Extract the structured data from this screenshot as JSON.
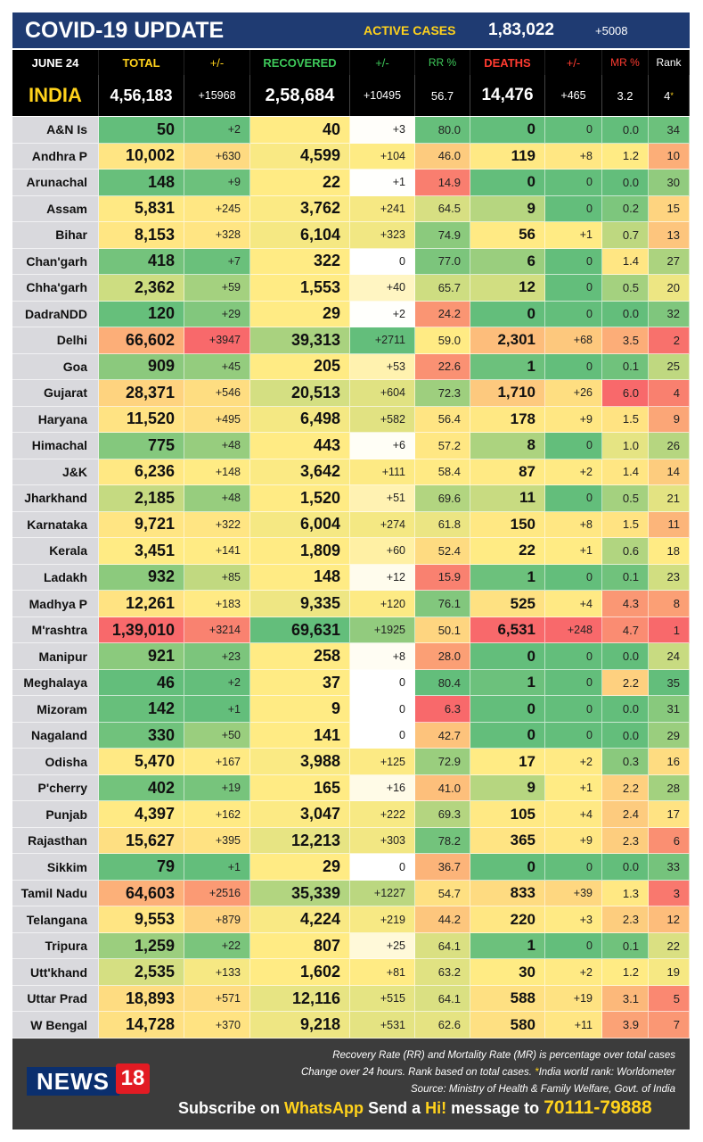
{
  "header": {
    "title": "COVID-19 UPDATE",
    "active_label": "ACTIVE CASES",
    "active_value": "1,83,022",
    "active_delta": "+5008"
  },
  "columns": {
    "date": "JUNE 24",
    "total": "TOTAL",
    "total_delta": "+/-",
    "recovered": "RECOVERED",
    "rec_delta": "+/-",
    "rr": "RR %",
    "deaths": "DEATHS",
    "death_delta": "+/-",
    "mr": "MR %",
    "rank": "Rank"
  },
  "india": {
    "name": "INDIA",
    "total": "4,56,183",
    "total_delta": "+15968",
    "recovered": "2,58,684",
    "rec_delta": "+10495",
    "rr": "56.7",
    "deaths": "14,476",
    "death_delta": "+465",
    "mr": "3.2",
    "rank": "4",
    "rank_mark": "*"
  },
  "rows": [
    {
      "state": "A&N Is",
      "total": "50",
      "td": "+2",
      "rec": "40",
      "rd": "+3",
      "rr": "80.0",
      "deaths": "0",
      "dd": "0",
      "mr": "0.0",
      "rank": "34"
    },
    {
      "state": "Andhra P",
      "total": "10,002",
      "td": "+630",
      "rec": "4,599",
      "rd": "+104",
      "rr": "46.0",
      "deaths": "119",
      "dd": "+8",
      "mr": "1.2",
      "rank": "10"
    },
    {
      "state": "Arunachal",
      "total": "148",
      "td": "+9",
      "rec": "22",
      "rd": "+1",
      "rr": "14.9",
      "deaths": "0",
      "dd": "0",
      "mr": "0.0",
      "rank": "30"
    },
    {
      "state": "Assam",
      "total": "5,831",
      "td": "+245",
      "rec": "3,762",
      "rd": "+241",
      "rr": "64.5",
      "deaths": "9",
      "dd": "0",
      "mr": "0.2",
      "rank": "15"
    },
    {
      "state": "Bihar",
      "total": "8,153",
      "td": "+328",
      "rec": "6,104",
      "rd": "+323",
      "rr": "74.9",
      "deaths": "56",
      "dd": "+1",
      "mr": "0.7",
      "rank": "13"
    },
    {
      "state": "Chan'garh",
      "total": "418",
      "td": "+7",
      "rec": "322",
      "rd": "0",
      "rr": "77.0",
      "deaths": "6",
      "dd": "0",
      "mr": "1.4",
      "rank": "27"
    },
    {
      "state": "Chha'garh",
      "total": "2,362",
      "td": "+59",
      "rec": "1,553",
      "rd": "+40",
      "rr": "65.7",
      "deaths": "12",
      "dd": "0",
      "mr": "0.5",
      "rank": "20"
    },
    {
      "state": "DadraNDD",
      "total": "120",
      "td": "+29",
      "rec": "29",
      "rd": "+2",
      "rr": "24.2",
      "deaths": "0",
      "dd": "0",
      "mr": "0.0",
      "rank": "32"
    },
    {
      "state": "Delhi",
      "total": "66,602",
      "td": "+3947",
      "rec": "39,313",
      "rd": "+2711",
      "rr": "59.0",
      "deaths": "2,301",
      "dd": "+68",
      "mr": "3.5",
      "rank": "2"
    },
    {
      "state": "Goa",
      "total": "909",
      "td": "+45",
      "rec": "205",
      "rd": "+53",
      "rr": "22.6",
      "deaths": "1",
      "dd": "0",
      "mr": "0.1",
      "rank": "25"
    },
    {
      "state": "Gujarat",
      "total": "28,371",
      "td": "+546",
      "rec": "20,513",
      "rd": "+604",
      "rr": "72.3",
      "deaths": "1,710",
      "dd": "+26",
      "mr": "6.0",
      "rank": "4"
    },
    {
      "state": "Haryana",
      "total": "11,520",
      "td": "+495",
      "rec": "6,498",
      "rd": "+582",
      "rr": "56.4",
      "deaths": "178",
      "dd": "+9",
      "mr": "1.5",
      "rank": "9"
    },
    {
      "state": "Himachal",
      "total": "775",
      "td": "+48",
      "rec": "443",
      "rd": "+6",
      "rr": "57.2",
      "deaths": "8",
      "dd": "0",
      "mr": "1.0",
      "rank": "26"
    },
    {
      "state": "J&K",
      "total": "6,236",
      "td": "+148",
      "rec": "3,642",
      "rd": "+111",
      "rr": "58.4",
      "deaths": "87",
      "dd": "+2",
      "mr": "1.4",
      "rank": "14"
    },
    {
      "state": "Jharkhand",
      "total": "2,185",
      "td": "+48",
      "rec": "1,520",
      "rd": "+51",
      "rr": "69.6",
      "deaths": "11",
      "dd": "0",
      "mr": "0.5",
      "rank": "21"
    },
    {
      "state": "Karnataka",
      "total": "9,721",
      "td": "+322",
      "rec": "6,004",
      "rd": "+274",
      "rr": "61.8",
      "deaths": "150",
      "dd": "+8",
      "mr": "1.5",
      "rank": "11"
    },
    {
      "state": "Kerala",
      "total": "3,451",
      "td": "+141",
      "rec": "1,809",
      "rd": "+60",
      "rr": "52.4",
      "deaths": "22",
      "dd": "+1",
      "mr": "0.6",
      "rank": "18"
    },
    {
      "state": "Ladakh",
      "total": "932",
      "td": "+85",
      "rec": "148",
      "rd": "+12",
      "rr": "15.9",
      "deaths": "1",
      "dd": "0",
      "mr": "0.1",
      "rank": "23"
    },
    {
      "state": "Madhya P",
      "total": "12,261",
      "td": "+183",
      "rec": "9,335",
      "rd": "+120",
      "rr": "76.1",
      "deaths": "525",
      "dd": "+4",
      "mr": "4.3",
      "rank": "8"
    },
    {
      "state": "M'rashtra",
      "total": "1,39,010",
      "td": "+3214",
      "rec": "69,631",
      "rd": "+1925",
      "rr": "50.1",
      "deaths": "6,531",
      "dd": "+248",
      "mr": "4.7",
      "rank": "1"
    },
    {
      "state": "Manipur",
      "total": "921",
      "td": "+23",
      "rec": "258",
      "rd": "+8",
      "rr": "28.0",
      "deaths": "0",
      "dd": "0",
      "mr": "0.0",
      "rank": "24"
    },
    {
      "state": "Meghalaya",
      "total": "46",
      "td": "+2",
      "rec": "37",
      "rd": "0",
      "rr": "80.4",
      "deaths": "1",
      "dd": "0",
      "mr": "2.2",
      "rank": "35"
    },
    {
      "state": "Mizoram",
      "total": "142",
      "td": "+1",
      "rec": "9",
      "rd": "0",
      "rr": "6.3",
      "deaths": "0",
      "dd": "0",
      "mr": "0.0",
      "rank": "31"
    },
    {
      "state": "Nagaland",
      "total": "330",
      "td": "+50",
      "rec": "141",
      "rd": "0",
      "rr": "42.7",
      "deaths": "0",
      "dd": "0",
      "mr": "0.0",
      "rank": "29"
    },
    {
      "state": "Odisha",
      "total": "5,470",
      "td": "+167",
      "rec": "3,988",
      "rd": "+125",
      "rr": "72.9",
      "deaths": "17",
      "dd": "+2",
      "mr": "0.3",
      "rank": "16"
    },
    {
      "state": "P'cherry",
      "total": "402",
      "td": "+19",
      "rec": "165",
      "rd": "+16",
      "rr": "41.0",
      "deaths": "9",
      "dd": "+1",
      "mr": "2.2",
      "rank": "28"
    },
    {
      "state": "Punjab",
      "total": "4,397",
      "td": "+162",
      "rec": "3,047",
      "rd": "+222",
      "rr": "69.3",
      "deaths": "105",
      "dd": "+4",
      "mr": "2.4",
      "rank": "17"
    },
    {
      "state": "Rajasthan",
      "total": "15,627",
      "td": "+395",
      "rec": "12,213",
      "rd": "+303",
      "rr": "78.2",
      "deaths": "365",
      "dd": "+9",
      "mr": "2.3",
      "rank": "6"
    },
    {
      "state": "Sikkim",
      "total": "79",
      "td": "+1",
      "rec": "29",
      "rd": "0",
      "rr": "36.7",
      "deaths": "0",
      "dd": "0",
      "mr": "0.0",
      "rank": "33"
    },
    {
      "state": "Tamil Nadu",
      "total": "64,603",
      "td": "+2516",
      "rec": "35,339",
      "rd": "+1227",
      "rr": "54.7",
      "deaths": "833",
      "dd": "+39",
      "mr": "1.3",
      "rank": "3"
    },
    {
      "state": "Telangana",
      "total": "9,553",
      "td": "+879",
      "rec": "4,224",
      "rd": "+219",
      "rr": "44.2",
      "deaths": "220",
      "dd": "+3",
      "mr": "2.3",
      "rank": "12"
    },
    {
      "state": "Tripura",
      "total": "1,259",
      "td": "+22",
      "rec": "807",
      "rd": "+25",
      "rr": "64.1",
      "deaths": "1",
      "dd": "0",
      "mr": "0.1",
      "rank": "22"
    },
    {
      "state": "Utt'khand",
      "total": "2,535",
      "td": "+133",
      "rec": "1,602",
      "rd": "+81",
      "rr": "63.2",
      "deaths": "30",
      "dd": "+2",
      "mr": "1.2",
      "rank": "19"
    },
    {
      "state": "Uttar Prad",
      "total": "18,893",
      "td": "+571",
      "rec": "12,116",
      "rd": "+515",
      "rr": "64.1",
      "deaths": "588",
      "dd": "+19",
      "mr": "3.1",
      "rank": "5"
    },
    {
      "state": "W Bengal",
      "total": "14,728",
      "td": "+370",
      "rec": "9,218",
      "rd": "+531",
      "rr": "62.6",
      "deaths": "580",
      "dd": "+11",
      "mr": "3.9",
      "rank": "7"
    }
  ],
  "footer": {
    "note1": "Recovery Rate (RR) and Mortality Rate (MR) is percentage over total cases",
    "note2_a": "Change over 24 hours. Rank based on total cases.",
    "note2_star": "*",
    "note2_b": "India world rank: Worldometer",
    "note3": "Source: Ministry of Health & Family Welfare, Govt. of India",
    "logo_news": "NEWS",
    "logo_18": "18",
    "sub_a": "Subscribe on",
    "sub_whatsapp": "WhatsApp",
    "sub_b": "Send a",
    "sub_hi": "Hi!",
    "sub_c": "message to",
    "sub_phone": "70111-79888"
  },
  "colors": {
    "header_bg": "#1f3b72",
    "accent_yellow": "#ffd21c",
    "header_total": "#ffd21c",
    "header_recovered": "#3ec95a",
    "header_rr": "#3ec95a",
    "header_deaths": "#ff3b30",
    "header_mr": "#ff3b30",
    "state_col": "#d9d9dd",
    "footer_bg": "#3c3c3c"
  }
}
